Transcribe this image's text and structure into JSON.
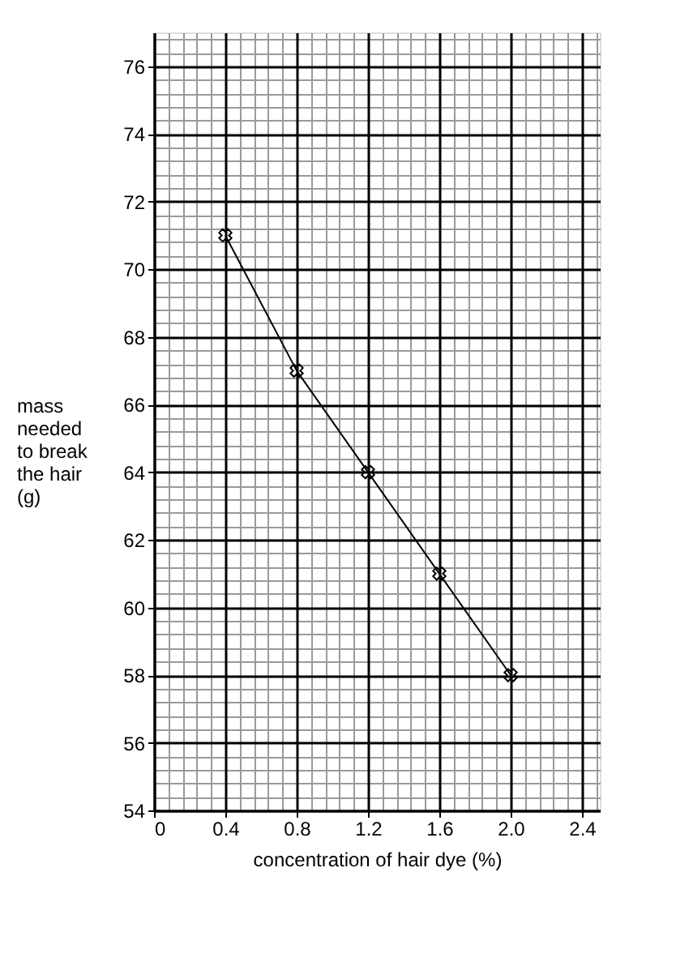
{
  "chart_data": {
    "type": "line",
    "xlabel": "concentration of hair dye (%)",
    "ylabel": "mass needed to break the hair (g)",
    "x": [
      0.4,
      0.8,
      1.2,
      1.6,
      2.0
    ],
    "series": [
      {
        "color": "#000000",
        "values": [
          71,
          67,
          64,
          61,
          58
        ]
      }
    ],
    "xlim": [
      0,
      2.5
    ],
    "ylim": [
      54,
      77
    ],
    "xticks": [
      0,
      0.4,
      0.8,
      1.2,
      1.6,
      {
        "value": 2,
        "label": "2.0"
      },
      2.4
    ],
    "yticks": [
      54,
      56,
      58,
      60,
      62,
      64,
      66,
      68,
      70,
      72,
      74,
      76
    ],
    "grid": true,
    "marker": "cross",
    "line_style": "solid"
  }
}
